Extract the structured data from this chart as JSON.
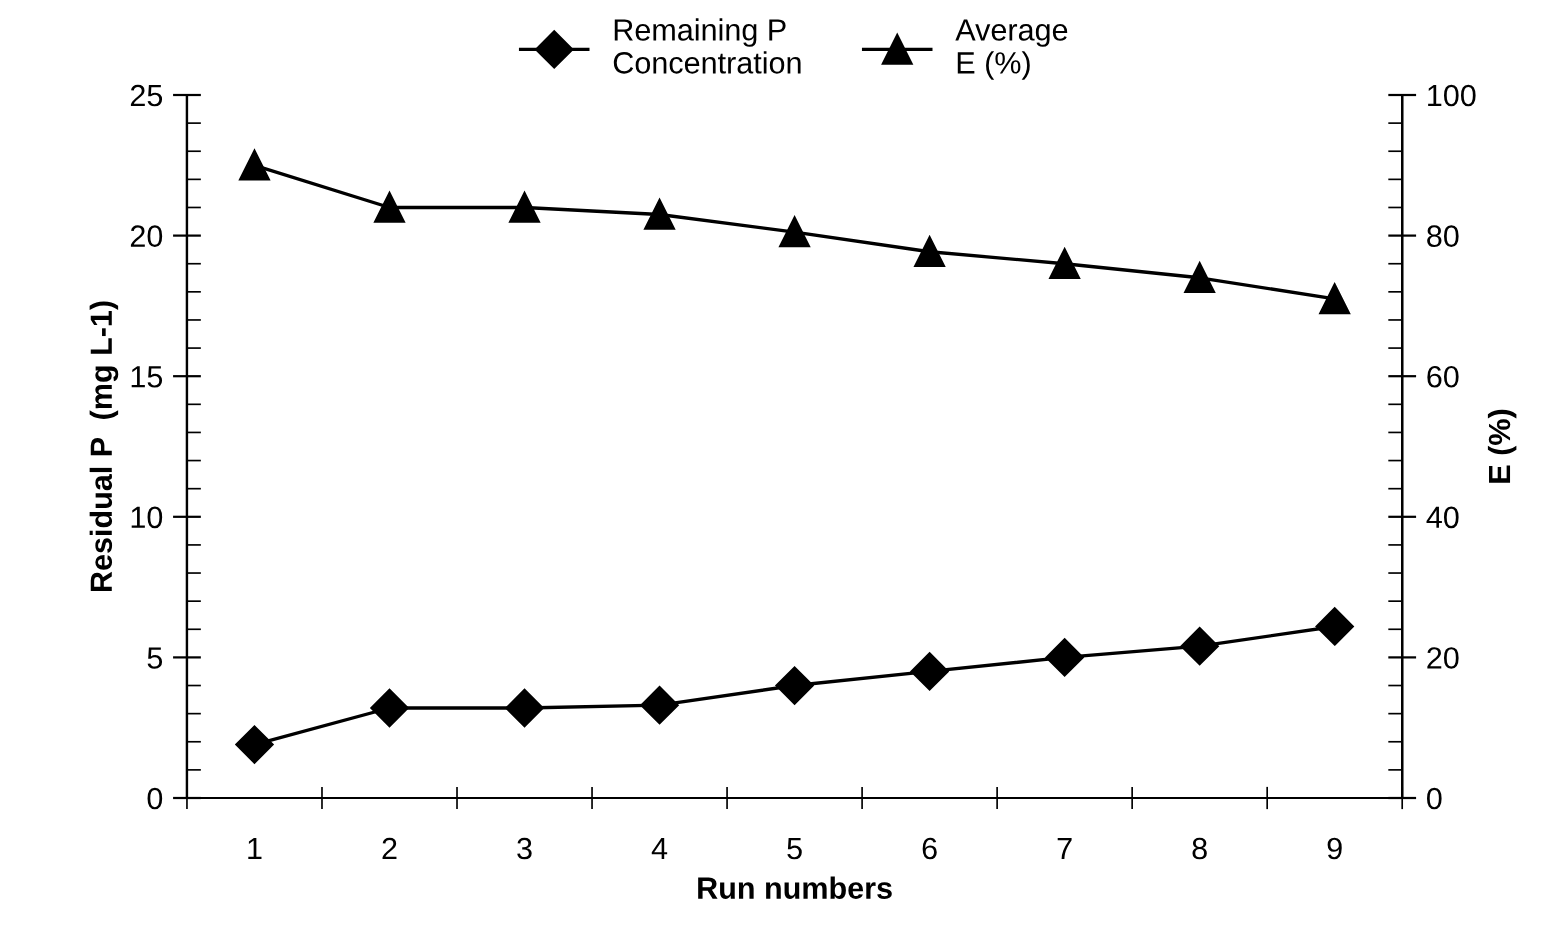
{
  "chart_data": {
    "type": "line",
    "xlabel": "Run numbers",
    "ylabel": "Residual P  (mg L-1)",
    "y2label": "E (%)",
    "categories": [
      "1",
      "2",
      "3",
      "4",
      "5",
      "6",
      "7",
      "8",
      "9"
    ],
    "series": [
      {
        "name": "Remaining P\nConcentration",
        "color": "#000000",
        "marker": "diamond",
        "values": [
          1.9,
          3.2,
          3.2,
          3.3,
          4.0,
          4.5,
          5.0,
          5.4,
          6.1
        ]
      },
      {
        "name": "Average\nE (%)",
        "color": "#000000",
        "marker": "triangle",
        "axis": "y2",
        "values": [
          90,
          84,
          84,
          83,
          80.5,
          77.7,
          76,
          74,
          71
        ]
      }
    ],
    "ylim": [
      0,
      25
    ],
    "yticks": [
      0,
      5,
      10,
      15,
      20,
      25
    ],
    "y2lim": [
      0,
      100
    ],
    "y2ticks": [
      0,
      20,
      40,
      60,
      80,
      100
    ],
    "grid": false,
    "legend": "top",
    "line_style": "solid"
  }
}
